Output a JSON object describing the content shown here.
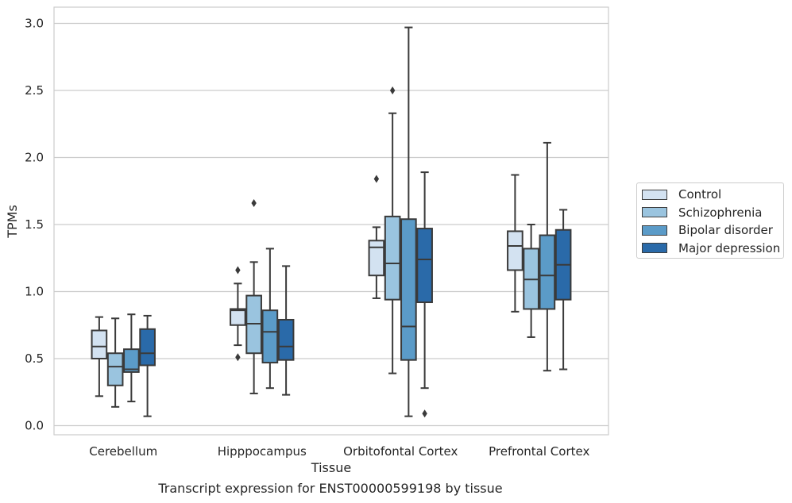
{
  "chart_data": {
    "type": "box",
    "caption": "Transcript expression for ENST00000599198 by tissue",
    "xlabel": "Tissue",
    "ylabel": "TPMs",
    "ylim": [
      -0.05,
      3.12
    ],
    "yticks": [
      0.0,
      0.5,
      1.0,
      1.5,
      2.0,
      2.5,
      3.0
    ],
    "ytick_labels": [
      "0.0",
      "0.5",
      "1.0",
      "1.5",
      "2.0",
      "2.5",
      "3.0"
    ],
    "grid": "horizontal",
    "legend_position": "right",
    "categories": [
      "Cerebellum",
      "Hipppocampus",
      "Orbitofontal Cortex",
      "Prefrontal Cortex"
    ],
    "series": [
      {
        "name": "Control",
        "color": "#d3e2f1",
        "boxes": [
          {
            "whisker_low": 0.22,
            "q1": 0.5,
            "median": 0.59,
            "q3": 0.71,
            "whisker_high": 0.81,
            "outliers": []
          },
          {
            "whisker_low": 0.6,
            "q1": 0.75,
            "median": 0.86,
            "q3": 0.87,
            "whisker_high": 1.06,
            "outliers": [
              0.51,
              1.16
            ]
          },
          {
            "whisker_low": 0.95,
            "q1": 1.12,
            "median": 1.33,
            "q3": 1.38,
            "whisker_high": 1.48,
            "outliers": [
              1.84
            ]
          },
          {
            "whisker_low": 0.85,
            "q1": 1.16,
            "median": 1.34,
            "q3": 1.45,
            "whisker_high": 1.87,
            "outliers": []
          }
        ]
      },
      {
        "name": "Schizophrenia",
        "color": "#9ac4df",
        "boxes": [
          {
            "whisker_low": 0.14,
            "q1": 0.3,
            "median": 0.44,
            "q3": 0.54,
            "whisker_high": 0.8,
            "outliers": []
          },
          {
            "whisker_low": 0.24,
            "q1": 0.54,
            "median": 0.76,
            "q3": 0.97,
            "whisker_high": 1.22,
            "outliers": [
              1.66
            ]
          },
          {
            "whisker_low": 0.39,
            "q1": 0.94,
            "median": 1.21,
            "q3": 1.56,
            "whisker_high": 2.33,
            "outliers": [
              2.5
            ]
          },
          {
            "whisker_low": 0.66,
            "q1": 0.87,
            "median": 1.09,
            "q3": 1.32,
            "whisker_high": 1.5,
            "outliers": []
          }
        ]
      },
      {
        "name": "Bipolar disorder",
        "color": "#5b9bc8",
        "boxes": [
          {
            "whisker_low": 0.18,
            "q1": 0.4,
            "median": 0.42,
            "q3": 0.57,
            "whisker_high": 0.83,
            "outliers": []
          },
          {
            "whisker_low": 0.28,
            "q1": 0.47,
            "median": 0.7,
            "q3": 0.86,
            "whisker_high": 1.32,
            "outliers": []
          },
          {
            "whisker_low": 0.07,
            "q1": 0.49,
            "median": 0.74,
            "q3": 1.54,
            "whisker_high": 2.97,
            "outliers": []
          },
          {
            "whisker_low": 0.41,
            "q1": 0.87,
            "median": 1.12,
            "q3": 1.42,
            "whisker_high": 2.11,
            "outliers": []
          }
        ]
      },
      {
        "name": "Major depression",
        "color": "#2a6aa9",
        "boxes": [
          {
            "whisker_low": 0.07,
            "q1": 0.45,
            "median": 0.54,
            "q3": 0.72,
            "whisker_high": 0.82,
            "outliers": []
          },
          {
            "whisker_low": 0.23,
            "q1": 0.49,
            "median": 0.59,
            "q3": 0.79,
            "whisker_high": 1.19,
            "outliers": []
          },
          {
            "whisker_low": 0.28,
            "q1": 0.92,
            "median": 1.24,
            "q3": 1.47,
            "whisker_high": 1.89,
            "outliers": [
              0.09
            ]
          },
          {
            "whisker_low": 0.42,
            "q1": 0.94,
            "median": 1.2,
            "q3": 1.46,
            "whisker_high": 1.61,
            "outliers": []
          }
        ]
      }
    ]
  }
}
